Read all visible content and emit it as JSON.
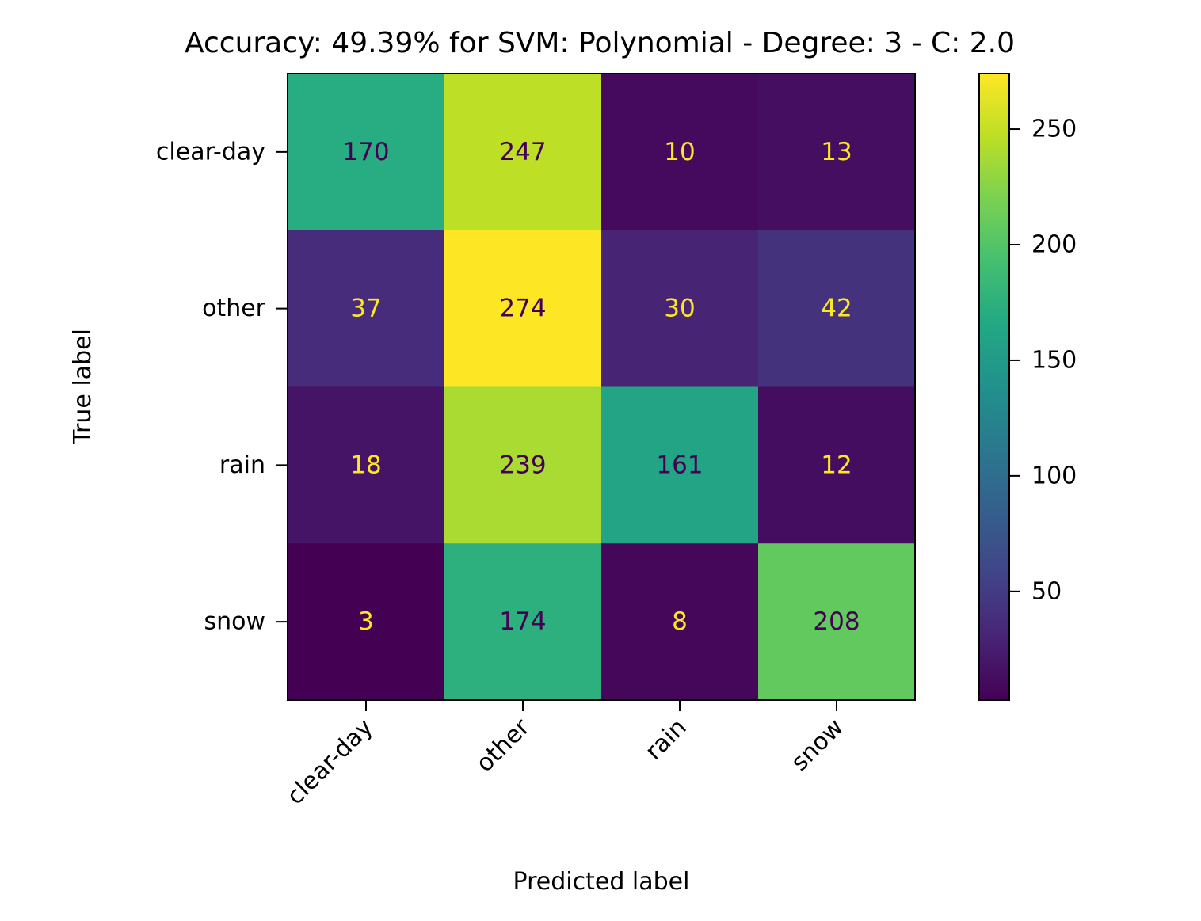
{
  "chart_data": {
    "type": "heatmap",
    "title": "Accuracy: 49.39% for SVM: Polynomial - Degree: 3 - C: 2.0",
    "xlabel": "Predicted label",
    "ylabel": "True label",
    "x_categories": [
      "clear-day",
      "other",
      "rain",
      "snow"
    ],
    "y_categories": [
      "clear-day",
      "other",
      "rain",
      "snow"
    ],
    "values": [
      [
        170,
        247,
        10,
        13
      ],
      [
        37,
        274,
        30,
        42
      ],
      [
        18,
        239,
        161,
        12
      ],
      [
        3,
        174,
        8,
        208
      ]
    ],
    "colormap": "viridis",
    "value_range": [
      3,
      274
    ],
    "colorbar_ticks": [
      50,
      100,
      150,
      200,
      250
    ],
    "grid": false
  }
}
